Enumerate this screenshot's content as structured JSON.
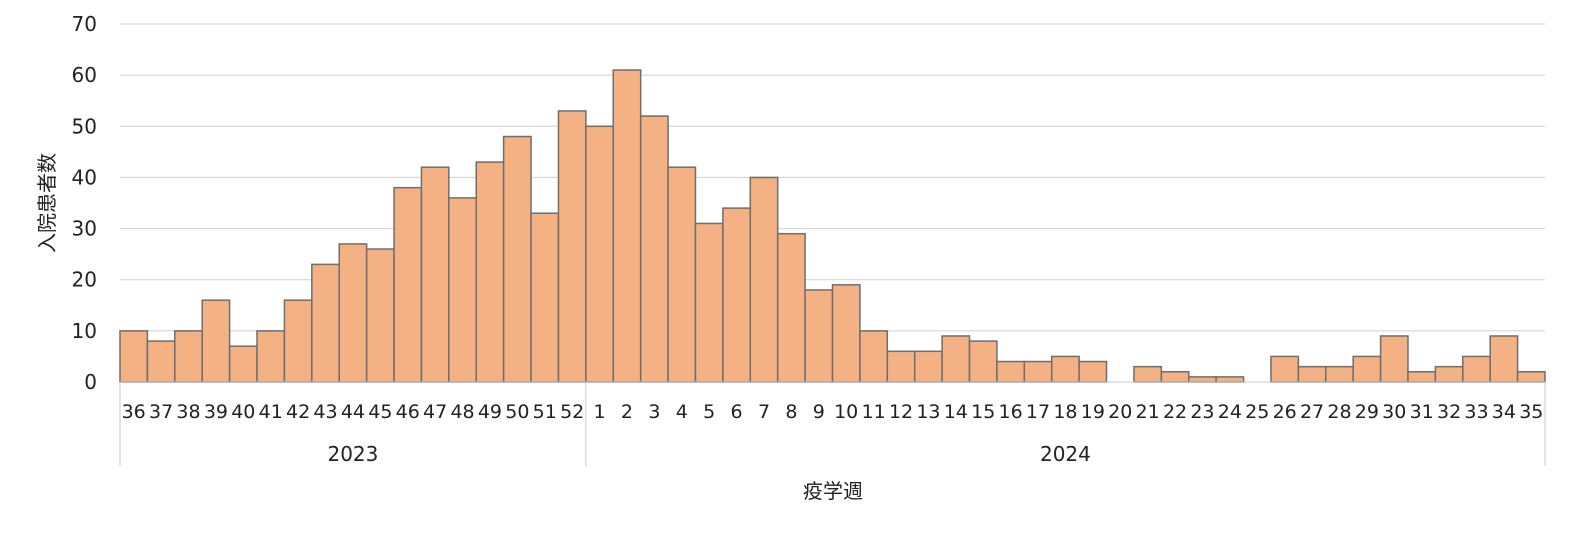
{
  "chart_data": {
    "type": "bar",
    "title": "",
    "xlabel": "疫学週",
    "ylabel": "入院患者数",
    "ylim": [
      0,
      70
    ],
    "yticks": [
      0,
      10,
      20,
      30,
      40,
      50,
      60,
      70
    ],
    "grid": true,
    "legend": "none",
    "colors": {
      "bar_fill": "#F4B183",
      "bar_stroke": "#6E6E6E",
      "grid": "#D0D0D0",
      "axis": "#C8C8C8"
    },
    "groups": [
      {
        "label": "2023",
        "count": 17
      },
      {
        "label": "2024",
        "count": 35
      }
    ],
    "categories": [
      "36",
      "37",
      "38",
      "39",
      "40",
      "41",
      "42",
      "43",
      "44",
      "45",
      "46",
      "47",
      "48",
      "49",
      "50",
      "51",
      "52",
      "1",
      "2",
      "3",
      "4",
      "5",
      "6",
      "7",
      "8",
      "9",
      "10",
      "11",
      "12",
      "13",
      "14",
      "15",
      "16",
      "17",
      "18",
      "19",
      "20",
      "21",
      "22",
      "23",
      "24",
      "25",
      "26",
      "27",
      "28",
      "29",
      "30",
      "31",
      "32",
      "33",
      "34",
      "35"
    ],
    "values": [
      10,
      8,
      10,
      16,
      7,
      10,
      16,
      23,
      27,
      26,
      38,
      42,
      36,
      43,
      48,
      33,
      53,
      50,
      61,
      52,
      42,
      31,
      34,
      40,
      29,
      18,
      19,
      10,
      6,
      6,
      9,
      8,
      4,
      4,
      5,
      4,
      0,
      3,
      2,
      1,
      1,
      0,
      5,
      3,
      3,
      5,
      9,
      2,
      3,
      5,
      9,
      2
    ]
  }
}
